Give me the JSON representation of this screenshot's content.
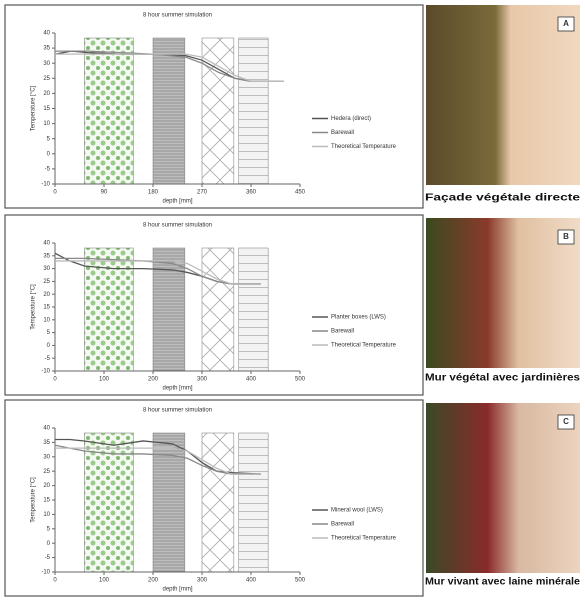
{
  "chart_data": [
    {
      "type": "line",
      "title": "8 hour summer simulation",
      "xlabel": "depth [mm]",
      "ylabel": "Temperature [°C]",
      "x": [
        0,
        30,
        60,
        120,
        180,
        240,
        270,
        300,
        330,
        360,
        420
      ],
      "series": [
        {
          "name": "Hedera (direct)",
          "color": "#555555",
          "values": [
            33,
            34,
            33.5,
            33,
            33,
            32.5,
            31,
            28,
            25,
            24,
            24
          ]
        },
        {
          "name": "Barewall",
          "color": "#888888",
          "values": [
            34,
            34,
            34,
            33.5,
            33,
            32,
            30,
            27,
            25,
            24,
            24
          ]
        },
        {
          "name": "Theoretical Temperature",
          "color": "#bbbbbb",
          "values": [
            33,
            33,
            33,
            33,
            33,
            33,
            32,
            29,
            26,
            24,
            24
          ]
        }
      ],
      "xlim": [
        0,
        450
      ],
      "xticks": [
        0,
        90,
        180,
        270,
        360,
        450
      ],
      "ylim": [
        -10,
        40
      ],
      "yticks": [
        -10,
        -5,
        0,
        5,
        10,
        15,
        20,
        25,
        30,
        35,
        40
      ]
    },
    {
      "type": "line",
      "title": "8 hour summer simulation",
      "xlabel": "depth [mm]",
      "ylabel": "Temperature [°C]",
      "x": [
        0,
        30,
        60,
        120,
        180,
        240,
        270,
        300,
        330,
        360,
        420
      ],
      "series": [
        {
          "name": "Planter boxes (LWS)",
          "color": "#555555",
          "values": [
            36,
            33,
            31,
            30,
            30,
            29.5,
            28.5,
            27,
            25,
            24,
            24
          ]
        },
        {
          "name": "Barewall",
          "color": "#888888",
          "values": [
            34,
            34,
            34,
            33.5,
            33,
            32,
            30,
            27,
            25,
            24,
            24
          ]
        },
        {
          "name": "Theoretical Temperature",
          "color": "#bbbbbb",
          "values": [
            33,
            33,
            33,
            33,
            33,
            33,
            32,
            29,
            26,
            24,
            24
          ]
        }
      ],
      "xlim": [
        0,
        500
      ],
      "xticks": [
        0,
        100,
        200,
        300,
        400,
        500
      ],
      "ylim": [
        -10,
        40
      ],
      "yticks": [
        -10,
        -5,
        0,
        5,
        10,
        15,
        20,
        25,
        30,
        35,
        40
      ]
    },
    {
      "type": "line",
      "title": "8 hour summer simulation",
      "xlabel": "depth [mm]",
      "ylabel": "Temperature [°C]",
      "x": [
        0,
        30,
        60,
        120,
        180,
        240,
        270,
        300,
        330,
        360,
        420
      ],
      "series": [
        {
          "name": "Mineral wool (LWS)",
          "color": "#555555",
          "values": [
            36,
            36,
            35.5,
            34,
            35.5,
            34.5,
            32,
            28,
            25,
            24.5,
            24
          ]
        },
        {
          "name": "Barewall",
          "color": "#888888",
          "values": [
            34,
            33,
            32,
            31,
            31,
            30.5,
            29.5,
            27,
            25,
            24,
            24
          ]
        },
        {
          "name": "Theoretical Temperature",
          "color": "#bbbbbb",
          "values": [
            33,
            33,
            33,
            33,
            33,
            33,
            32,
            29,
            26,
            24,
            24
          ]
        }
      ],
      "xlim": [
        0,
        500
      ],
      "xticks": [
        0,
        100,
        200,
        300,
        400,
        500
      ],
      "ylim": [
        -10,
        40
      ],
      "yticks": [
        -10,
        -5,
        0,
        5,
        10,
        15,
        20,
        25,
        30,
        35,
        40
      ]
    }
  ],
  "photos": [
    {
      "letter": "A",
      "caption": "Façade végétale directe"
    },
    {
      "letter": "B",
      "caption": "Mur végétal avec jardinières"
    },
    {
      "letter": "C",
      "caption": "Mur vivant avec laine minérale"
    }
  ]
}
